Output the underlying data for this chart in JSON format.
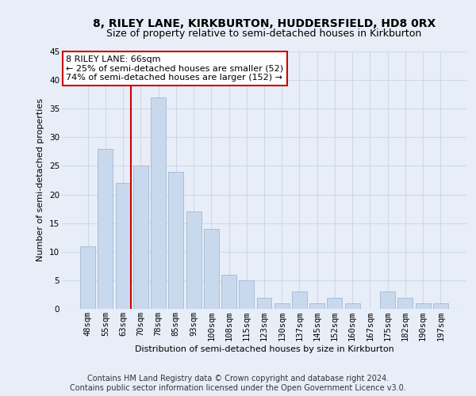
{
  "title": "8, RILEY LANE, KIRKBURTON, HUDDERSFIELD, HD8 0RX",
  "subtitle": "Size of property relative to semi-detached houses in Kirkburton",
  "xlabel": "Distribution of semi-detached houses by size in Kirkburton",
  "ylabel": "Number of semi-detached properties",
  "footer1": "Contains HM Land Registry data © Crown copyright and database right 2024.",
  "footer2": "Contains public sector information licensed under the Open Government Licence v3.0.",
  "categories": [
    "48sqm",
    "55sqm",
    "63sqm",
    "70sqm",
    "78sqm",
    "85sqm",
    "93sqm",
    "100sqm",
    "108sqm",
    "115sqm",
    "123sqm",
    "130sqm",
    "137sqm",
    "145sqm",
    "152sqm",
    "160sqm",
    "167sqm",
    "175sqm",
    "182sqm",
    "190sqm",
    "197sqm"
  ],
  "values": [
    11,
    28,
    22,
    25,
    37,
    24,
    17,
    14,
    6,
    5,
    2,
    1,
    3,
    1,
    2,
    1,
    0,
    3,
    2,
    1,
    1
  ],
  "bar_color": "#c9d9ed",
  "bar_edge_color": "#aabdd4",
  "annotation_text_line1": "8 RILEY LANE: 66sqm",
  "annotation_text_line2": "← 25% of semi-detached houses are smaller (52)",
  "annotation_text_line3": "74% of semi-detached houses are larger (152) →",
  "annotation_box_color": "#ffffff",
  "annotation_box_edge_color": "#cc0000",
  "annotation_line_color": "#cc0000",
  "grid_color": "#d0d8e8",
  "background_color": "#e8eef8",
  "ylim": [
    0,
    45
  ],
  "yticks": [
    0,
    5,
    10,
    15,
    20,
    25,
    30,
    35,
    40,
    45
  ],
  "title_fontsize": 10,
  "subtitle_fontsize": 9,
  "axis_label_fontsize": 8,
  "tick_fontsize": 7.5,
  "footer_fontsize": 7,
  "annotation_fontsize": 8
}
